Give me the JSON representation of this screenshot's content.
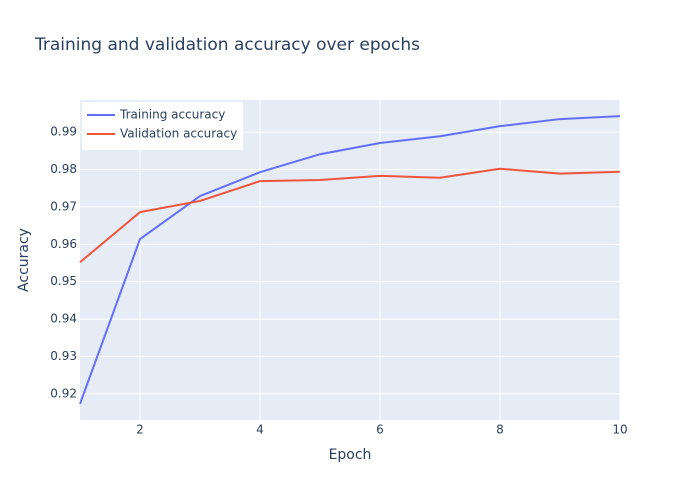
{
  "chart_data": {
    "type": "line",
    "title": "Training and validation accuracy over epochs",
    "x_label": "Epoch",
    "y_label": "Accuracy",
    "x": [
      1,
      2,
      3,
      4,
      5,
      6,
      7,
      8,
      9,
      10
    ],
    "series": [
      {
        "name": "Training accuracy",
        "color": "#636efa",
        "values": [
          0.9173,
          0.9614,
          0.9729,
          0.9793,
          0.9841,
          0.9871,
          0.9889,
          0.9916,
          0.9935,
          0.9943
        ]
      },
      {
        "name": "Validation accuracy",
        "color": "#ef553b",
        "values": [
          0.9552,
          0.9686,
          0.9716,
          0.9769,
          0.9772,
          0.9783,
          0.9778,
          0.9802,
          0.9789,
          0.9794
        ]
      }
    ],
    "xlim": [
      1,
      10
    ],
    "xticks": [
      2,
      4,
      6,
      8,
      10
    ],
    "ylim": [
      0.913,
      0.9986
    ],
    "yticks": [
      0.92,
      0.93,
      0.94,
      0.95,
      0.96,
      0.97,
      0.98,
      0.99
    ],
    "grid": true,
    "legend": "top-left"
  }
}
